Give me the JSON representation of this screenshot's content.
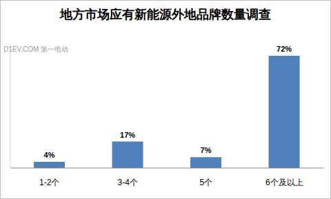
{
  "chart_data": {
    "type": "bar",
    "title": "地方市场应有新能源外地品牌数量调查",
    "categories": [
      "1-2个",
      "3-4个",
      "5个",
      "6个及以上"
    ],
    "values": [
      4,
      17,
      7,
      72
    ],
    "value_labels": [
      "4%",
      "17%",
      "7%",
      "72%"
    ],
    "data_labels": true,
    "color": "#4f81bd",
    "ylim": [
      0,
      80
    ],
    "grid": false,
    "tick_labels": "x",
    "annotations": [
      "D1EV.COM 第一电动"
    ]
  }
}
